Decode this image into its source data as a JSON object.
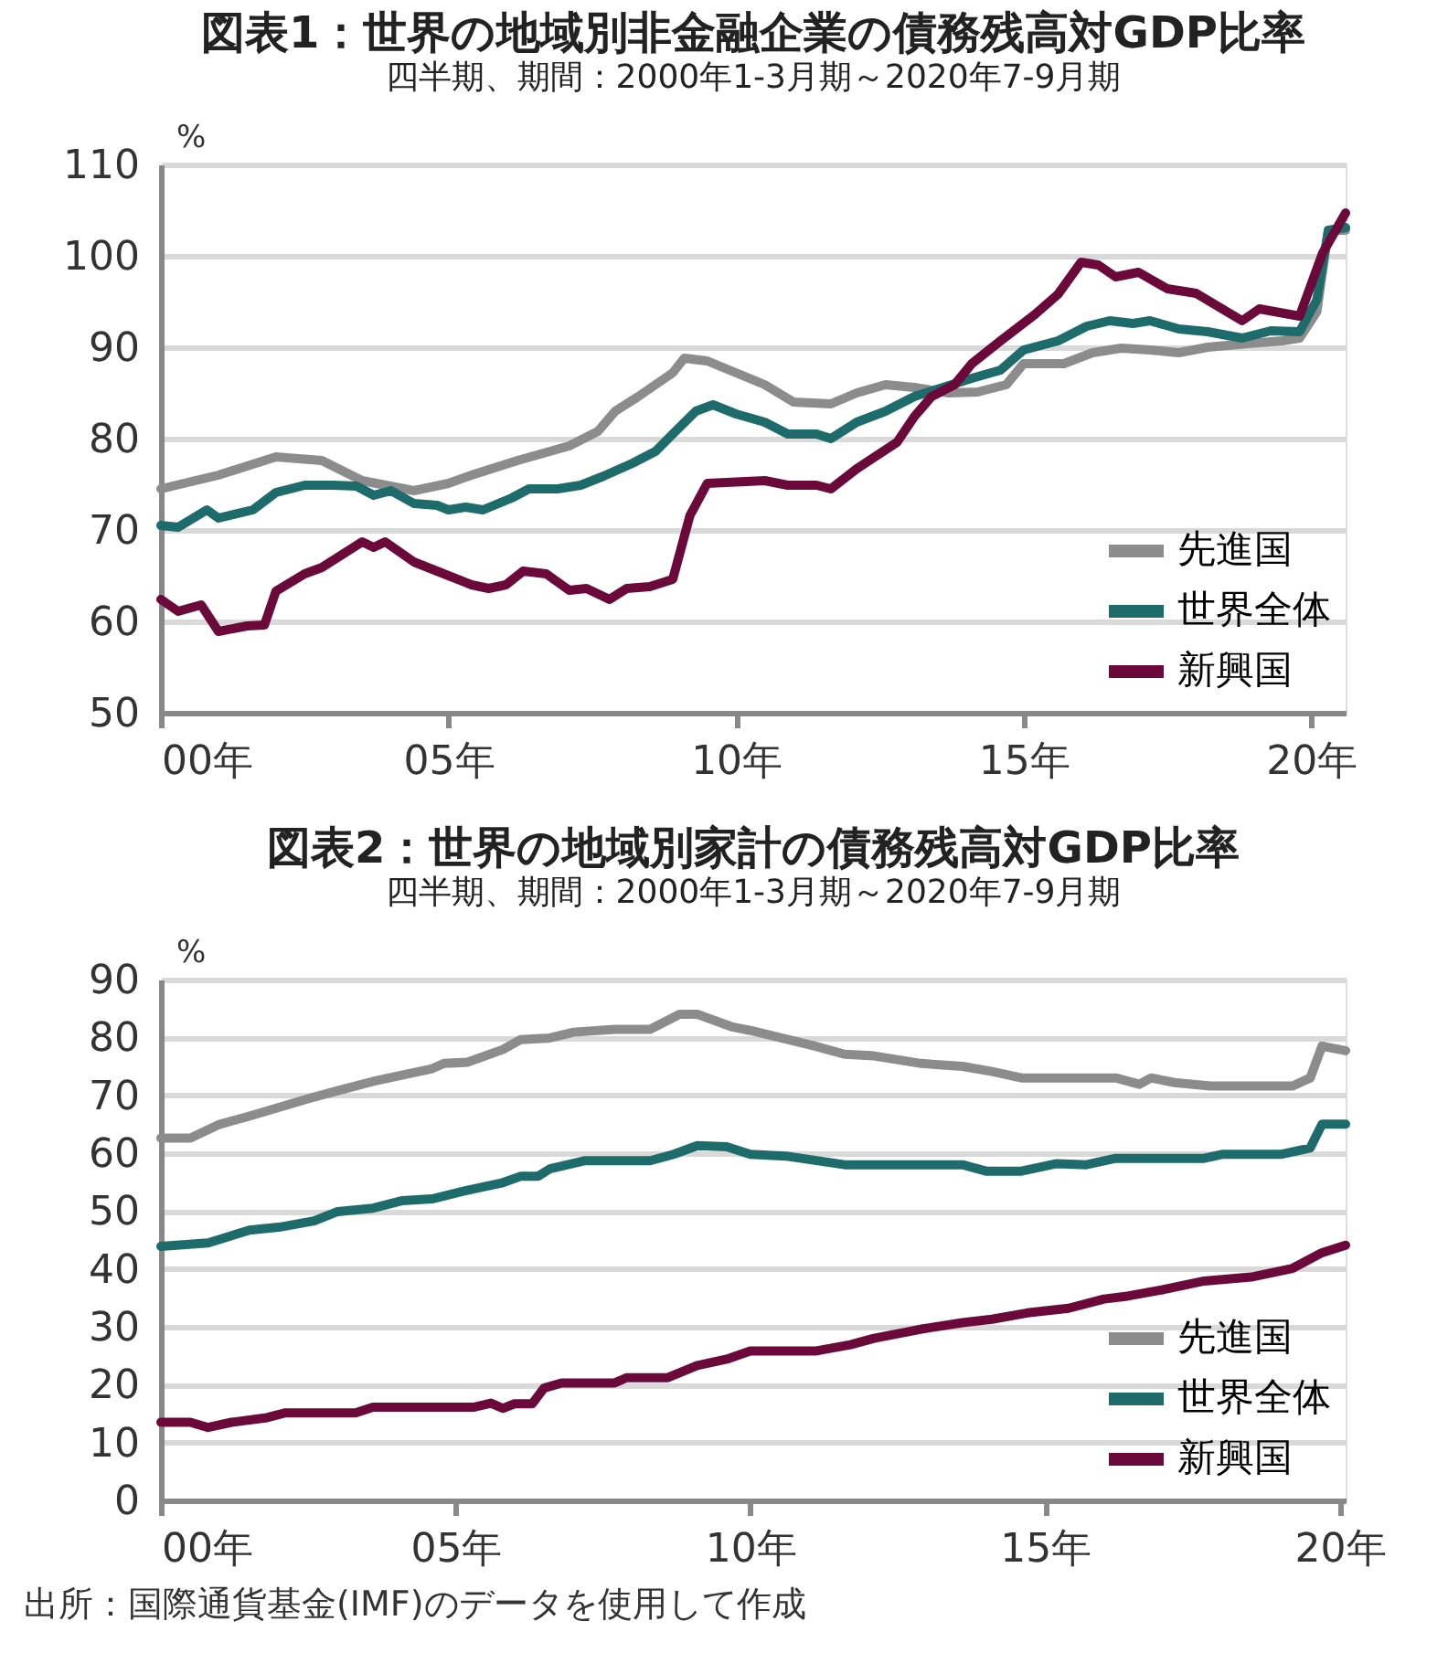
{
  "chart_data": [
    {
      "type": "line",
      "title": "図表1：世界の地域別非金融企業の債務残高対GDP比率",
      "subtitle": "四半期、期間：2000年1-3月期～2020年7-9月期",
      "ylabel": "%",
      "xlim": [
        0,
        20.6
      ],
      "xticks": [
        {
          "value": 0,
          "label": "00年"
        },
        {
          "value": 5,
          "label": "05年"
        },
        {
          "value": 10,
          "label": "10年"
        },
        {
          "value": 15,
          "label": "15年"
        },
        {
          "value": 20,
          "label": "20年"
        }
      ],
      "ylim": [
        50,
        110
      ],
      "yticks": [
        50,
        60,
        70,
        80,
        90,
        100,
        110
      ],
      "grid": "y",
      "legend": "bottom right",
      "line_style": "solid",
      "series": [
        {
          "name": "先進国",
          "color": "#8c8c8c",
          "x": [
            0,
            1,
            2,
            2.8,
            3.5,
            4.4,
            5,
            5.4,
            6.2,
            7.1,
            7.6,
            7.9,
            8.3,
            8.9,
            9.1,
            9.5,
            10,
            10.5,
            11,
            11.65,
            12.1,
            12.6,
            13.1,
            13.7,
            14.2,
            14.7,
            15,
            15.7,
            16.2,
            16.7,
            17.2,
            17.7,
            18.2,
            18.9,
            19.5,
            19.8,
            20.1,
            20.3,
            20.6
          ],
          "values": [
            74.5,
            76,
            78,
            77.6,
            75.4,
            74.3,
            75.1,
            76,
            77.6,
            79.2,
            80.8,
            83,
            84.6,
            87.2,
            88.8,
            88.5,
            87.2,
            85.9,
            84,
            83.8,
            85,
            85.9,
            85.6,
            85,
            85.1,
            85.9,
            88.2,
            88.2,
            89.4,
            89.9,
            89.7,
            89.4,
            90,
            90.4,
            90.7,
            91,
            93.9,
            102.8,
            102.8
          ]
        },
        {
          "name": "世界全体",
          "color": "#1e6b6b",
          "x": [
            0,
            0.3,
            0.8,
            1,
            1.6,
            2,
            2.5,
            3,
            3.4,
            3.7,
            4,
            4.4,
            4.8,
            5,
            5.3,
            5.6,
            6.1,
            6.4,
            6.9,
            7.3,
            7.7,
            8.2,
            8.6,
            8.9,
            9.3,
            9.6,
            10,
            10.5,
            10.9,
            11.4,
            11.65,
            12.1,
            12.6,
            13.1,
            13.6,
            14.1,
            14.6,
            15,
            15.6,
            16.1,
            16.5,
            16.9,
            17.2,
            17.7,
            18.2,
            18.8,
            19.3,
            19.8,
            20.1,
            20.3,
            20.6
          ],
          "values": [
            70.5,
            70.3,
            72.2,
            71.3,
            72.2,
            74.1,
            74.9,
            74.9,
            74.8,
            73.8,
            74.3,
            72.9,
            72.7,
            72.2,
            72.5,
            72.2,
            73.5,
            74.5,
            74.5,
            74.9,
            75.9,
            77.3,
            78.6,
            80.5,
            83,
            83.7,
            82.7,
            81.8,
            80.5,
            80.5,
            80,
            81.8,
            83,
            84.6,
            85.6,
            86.6,
            87.5,
            89.7,
            90.7,
            92.3,
            92.9,
            92.6,
            92.9,
            92,
            91.7,
            91,
            91.8,
            91.7,
            95.2,
            102.8,
            103.1
          ]
        },
        {
          "name": "新興国",
          "color": "#6b0a3a",
          "x": [
            0,
            0.3,
            0.7,
            1,
            1.5,
            1.8,
            2,
            2.5,
            2.8,
            3.5,
            3.7,
            3.9,
            4.4,
            4.8,
            5.4,
            5.7,
            6,
            6.3,
            6.7,
            7.1,
            7.4,
            7.8,
            8.1,
            8.5,
            8.9,
            9.2,
            9.5,
            10.5,
            10.9,
            11.4,
            11.65,
            12.1,
            12.8,
            13.1,
            13.4,
            13.8,
            14.1,
            14.6,
            15.2,
            15.6,
            16,
            16.3,
            16.6,
            17,
            17.5,
            18,
            18.8,
            19.1,
            19.8,
            20.2,
            20.6
          ],
          "values": [
            62.4,
            61.1,
            61.8,
            58.9,
            59.5,
            59.6,
            63.3,
            65.2,
            65.9,
            68.7,
            68.1,
            68.7,
            66.5,
            65.5,
            64,
            63.6,
            64,
            65.5,
            65.2,
            63.4,
            63.6,
            62.4,
            63.6,
            63.8,
            64.6,
            71.6,
            75.1,
            75.4,
            74.9,
            74.9,
            74.5,
            76.7,
            79.6,
            82.4,
            84.6,
            85.9,
            88.2,
            90.7,
            93.6,
            95.8,
            99.3,
            99,
            97.7,
            98.2,
            96.4,
            95.9,
            92.9,
            94.2,
            93.4,
            100.3,
            104.7
          ]
        }
      ]
    },
    {
      "type": "line",
      "title": "図表2：世界の地域別家計の債務残高対GDP比率",
      "subtitle": "四半期、期間：2000年1-3月期～2020年7-9月期",
      "ylabel": "%",
      "xlim": [
        0,
        20.1
      ],
      "xticks": [
        {
          "value": 0,
          "label": "00年"
        },
        {
          "value": 5,
          "label": "05年"
        },
        {
          "value": 10,
          "label": "10年"
        },
        {
          "value": 15,
          "label": "15年"
        },
        {
          "value": 20,
          "label": "20年"
        }
      ],
      "ylim": [
        0,
        90
      ],
      "yticks": [
        0,
        10,
        20,
        30,
        40,
        50,
        60,
        70,
        80,
        90
      ],
      "grid": "y",
      "legend": "bottom right",
      "line_style": "solid",
      "annotations": [
        "出所：国際通貨基金(IMF)のデータを使用して作成"
      ],
      "series": [
        {
          "name": "先進国",
          "color": "#8c8c8c",
          "x": [
            0,
            0.5,
            1,
            1.5,
            2.6,
            3,
            3.6,
            4.6,
            4.8,
            5.2,
            5.8,
            6.1,
            6.6,
            7,
            7.7,
            8.3,
            8.8,
            9.1,
            9.7,
            10,
            11.1,
            11.6,
            12.1,
            12.9,
            13.6,
            14.1,
            14.6,
            16.2,
            16.6,
            16.8,
            17.2,
            17.8,
            19.2,
            19.5,
            19.7,
            20.1
          ],
          "values": [
            62.6,
            62.6,
            65,
            66.4,
            69.7,
            70.8,
            72.4,
            74.6,
            75.5,
            75.7,
            77.9,
            79.6,
            79.9,
            80.9,
            81.4,
            81.4,
            84,
            84,
            81.8,
            81.2,
            78.5,
            77.1,
            76.8,
            75.5,
            75,
            74.1,
            73,
            73,
            71.9,
            73,
            72.2,
            71.6,
            71.6,
            73,
            78.5,
            77.7
          ]
        },
        {
          "name": "世界全体",
          "color": "#1e6b6b",
          "x": [
            0,
            0.8,
            1.5,
            2,
            2.6,
            3,
            3.6,
            4.1,
            4.6,
            5.2,
            5.8,
            6.1,
            6.4,
            6.6,
            7.2,
            8.3,
            8.7,
            9.1,
            9.6,
            10,
            10.6,
            11.6,
            13.6,
            14,
            14.6,
            15.2,
            15.7,
            16.2,
            17.7,
            18,
            19,
            19.5,
            19.7,
            20.1
          ],
          "values": [
            43.9,
            44.5,
            46.7,
            47.2,
            48.3,
            49.9,
            50.5,
            51.8,
            52.1,
            53.6,
            54.9,
            56,
            56,
            57.3,
            58.7,
            58.7,
            59.8,
            61.3,
            61.1,
            59.8,
            59.5,
            58,
            58,
            56.9,
            56.9,
            58.2,
            58,
            59.1,
            59.1,
            59.8,
            59.8,
            60.9,
            65,
            65
          ]
        },
        {
          "name": "新興国",
          "color": "#6b0a3a",
          "x": [
            0,
            0.5,
            0.8,
            1.2,
            1.8,
            2.1,
            3.3,
            3.6,
            5.3,
            5.6,
            5.8,
            6,
            6.3,
            6.5,
            6.8,
            7.7,
            7.9,
            8.6,
            9.1,
            9.6,
            10,
            11.1,
            11.7,
            12.1,
            12.9,
            13.6,
            14.1,
            14.7,
            15.4,
            16,
            16.4,
            17,
            17.7,
            18.5,
            19.2,
            19.7,
            20.1
          ],
          "values": [
            13.5,
            13.5,
            12.6,
            13.5,
            14.3,
            15.1,
            15.1,
            16.1,
            16.1,
            16.8,
            15.9,
            16.7,
            16.7,
            19.4,
            20.3,
            20.3,
            21.2,
            21.2,
            23.3,
            24.4,
            25.8,
            25.8,
            26.9,
            28,
            29.6,
            30.7,
            31.3,
            32.4,
            33.2,
            34.8,
            35.3,
            36.4,
            37.9,
            38.6,
            40.1,
            42.8,
            44.1
          ]
        }
      ]
    }
  ]
}
